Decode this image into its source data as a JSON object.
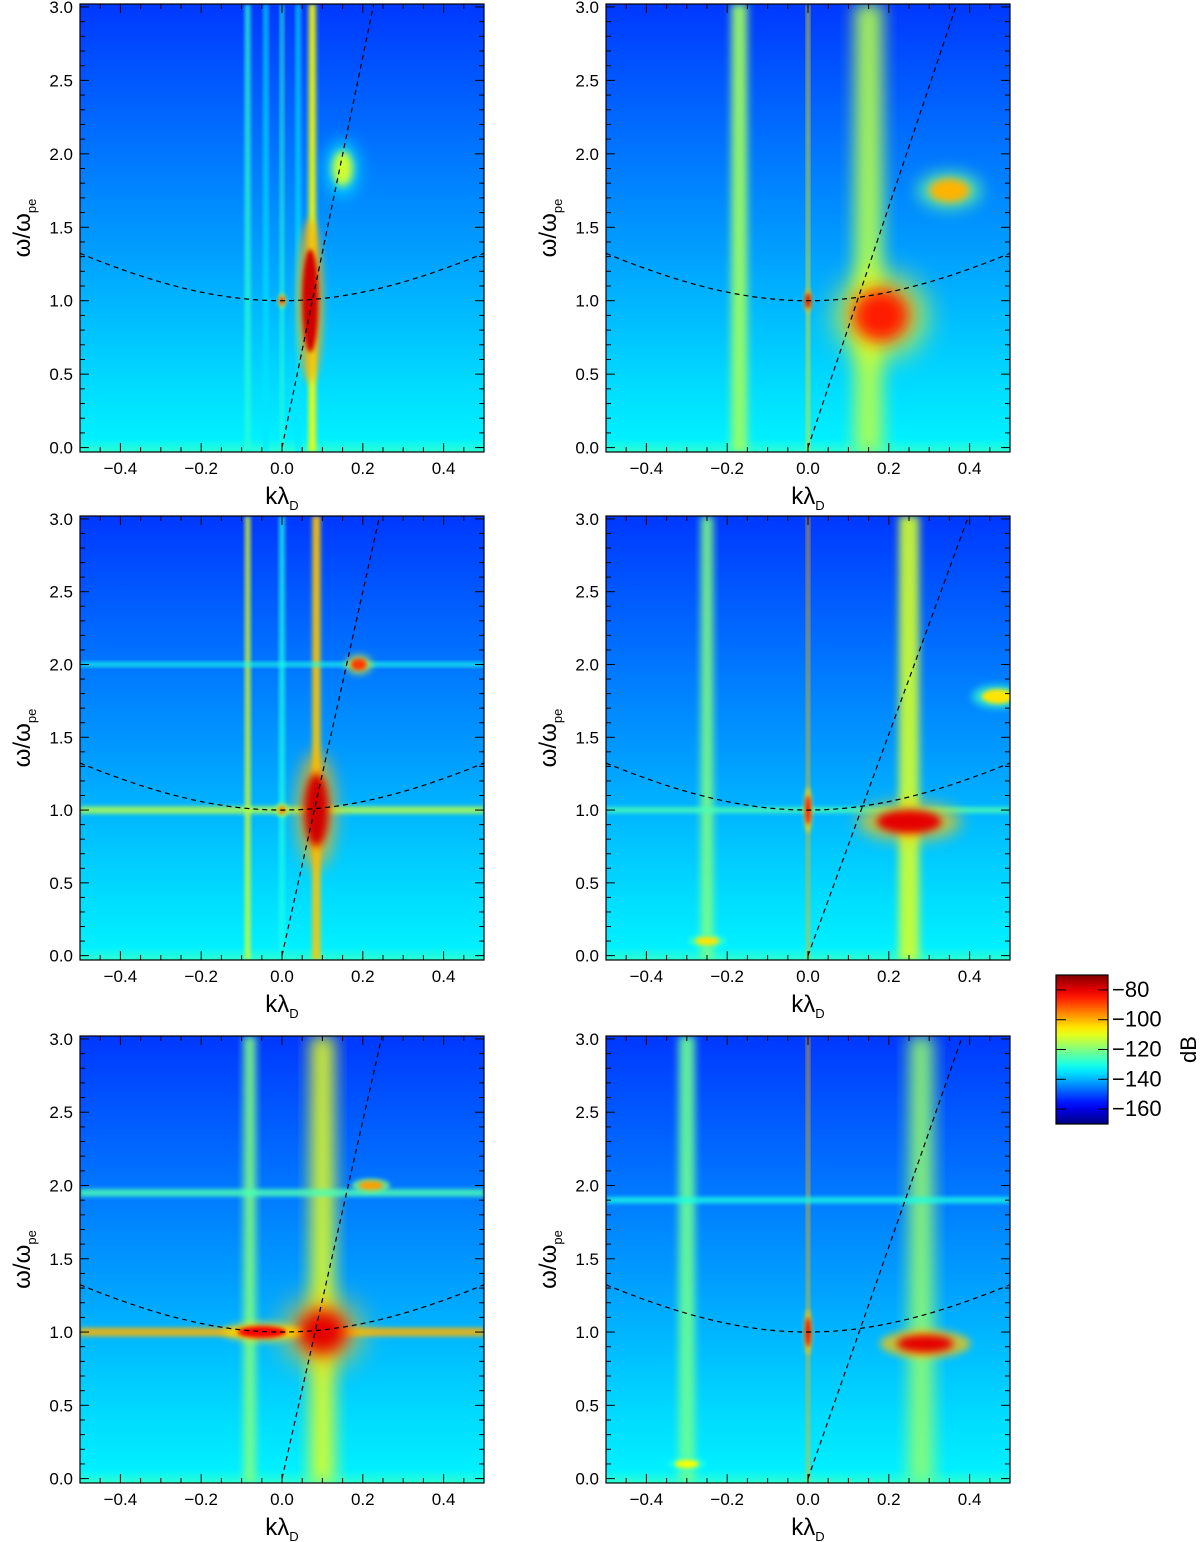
{
  "chart_data": {
    "type": "heatmap",
    "layout": "3x2 grid",
    "xlabel": "kλ",
    "xlabel_sub": "D",
    "ylabel": "ω/ω",
    "ylabel_sub": "pe",
    "xlim": [
      -0.5,
      0.5
    ],
    "ylim": [
      -0.03,
      3.02
    ],
    "xticks": [
      -0.4,
      -0.2,
      0.0,
      0.2,
      0.4
    ],
    "xtick_labels": [
      "−0.4",
      "−0.2",
      "0.0",
      "0.2",
      "0.4"
    ],
    "yticks": [
      0.0,
      0.5,
      1.0,
      1.5,
      2.0,
      2.5,
      3.0
    ],
    "ytick_labels": [
      "0.0",
      "0.5",
      "1.0",
      "1.5",
      "2.0",
      "2.5",
      "3.0"
    ],
    "overlay_curves": [
      {
        "kind": "dispersion",
        "equation": "omega = sqrt(1 + 3 k^2)",
        "style": "dashed"
      },
      {
        "kind": "beam line",
        "style": "dashed"
      }
    ],
    "colorbar": {
      "label": "dB",
      "range": [
        -170,
        -70
      ],
      "ticks": [
        -160,
        -140,
        -120,
        -100,
        -80
      ],
      "tick_labels": [
        "−160",
        "−140",
        "−120",
        "−100",
        "−80"
      ],
      "colormap": "jet"
    },
    "panels": [
      {
        "id": "row1-left",
        "beam_slope": 13.3,
        "features": [
          {
            "kind": "vband",
            "k": -0.085,
            "w": 0.012,
            "level": -128
          },
          {
            "kind": "vband",
            "k": -0.04,
            "w": 0.01,
            "level": -135
          },
          {
            "kind": "vband",
            "k": 0.0,
            "w": 0.008,
            "level": -128
          },
          {
            "kind": "vband",
            "k": 0.04,
            "w": 0.01,
            "level": -135
          },
          {
            "kind": "vband",
            "k": 0.075,
            "w": 0.018,
            "level": -108
          },
          {
            "kind": "spot",
            "k": 0.07,
            "w": 1.0,
            "dk": 0.02,
            "dw": 0.35,
            "level": -78
          },
          {
            "kind": "spot",
            "k": 0.0,
            "w": 1.0,
            "dk": 0.006,
            "dw": 0.03,
            "level": -85
          },
          {
            "kind": "spot",
            "k": 0.15,
            "w": 1.9,
            "dk": 0.025,
            "dw": 0.12,
            "level": -112
          }
        ]
      },
      {
        "id": "row1-right",
        "beam_slope": 8.2,
        "features": [
          {
            "kind": "vband",
            "k": -0.17,
            "w": 0.04,
            "level": -117
          },
          {
            "kind": "vband",
            "k": 0.0,
            "w": 0.007,
            "level": -105
          },
          {
            "kind": "vband",
            "k": 0.15,
            "w": 0.07,
            "level": -115
          },
          {
            "kind": "spot",
            "k": 0.18,
            "w": 0.9,
            "dk": 0.07,
            "dw": 0.18,
            "level": -85
          },
          {
            "kind": "spot",
            "k": 0.35,
            "w": 1.75,
            "dk": 0.05,
            "dw": 0.08,
            "level": -100
          },
          {
            "kind": "spot",
            "k": 0.0,
            "w": 1.0,
            "dk": 0.006,
            "dw": 0.05,
            "level": -78
          }
        ]
      },
      {
        "id": "row2-left",
        "beam_slope": 12.5,
        "features": [
          {
            "kind": "vband",
            "k": -0.085,
            "w": 0.012,
            "level": -110
          },
          {
            "kind": "vband",
            "k": 0.0,
            "w": 0.012,
            "level": -130
          },
          {
            "kind": "vband",
            "k": 0.085,
            "w": 0.02,
            "level": -102
          },
          {
            "kind": "hband",
            "k": 0.0,
            "w": 1.0,
            "dw": 0.05,
            "level": -115
          },
          {
            "kind": "hband",
            "k": 0.0,
            "w": 2.0,
            "dw": 0.03,
            "level": -130
          },
          {
            "kind": "spot",
            "k": 0.085,
            "w": 1.0,
            "dk": 0.03,
            "dw": 0.25,
            "level": -78
          },
          {
            "kind": "spot",
            "k": 0.19,
            "w": 2.0,
            "dk": 0.02,
            "dw": 0.04,
            "level": -88
          },
          {
            "kind": "spot",
            "k": 0.0,
            "w": 1.0,
            "dk": 0.01,
            "dw": 0.03,
            "level": -95
          }
        ]
      },
      {
        "id": "row2-right",
        "beam_slope": 7.6,
        "features": [
          {
            "kind": "vband",
            "k": -0.25,
            "w": 0.03,
            "level": -120
          },
          {
            "kind": "vband",
            "k": 0.0,
            "w": 0.007,
            "level": -100
          },
          {
            "kind": "vband",
            "k": 0.25,
            "w": 0.05,
            "level": -112
          },
          {
            "kind": "hband",
            "k": 0.0,
            "w": 1.0,
            "dw": 0.04,
            "level": -125
          },
          {
            "kind": "spot",
            "k": 0.25,
            "w": 0.92,
            "dk": 0.08,
            "dw": 0.08,
            "level": -80
          },
          {
            "kind": "spot",
            "k": 0.0,
            "w": 1.0,
            "dk": 0.006,
            "dw": 0.1,
            "level": -82
          },
          {
            "kind": "spot",
            "k": -0.25,
            "w": 0.1,
            "dk": 0.03,
            "dw": 0.03,
            "level": -105
          },
          {
            "kind": "spot",
            "k": 0.47,
            "w": 1.78,
            "dk": 0.04,
            "dw": 0.05,
            "level": -105
          }
        ]
      },
      {
        "id": "row3-left",
        "beam_slope": 12.2,
        "features": [
          {
            "kind": "vband",
            "k": -0.08,
            "w": 0.03,
            "level": -120
          },
          {
            "kind": "vband",
            "k": 0.1,
            "w": 0.06,
            "level": -110
          },
          {
            "kind": "hband",
            "k": 0.0,
            "w": 1.0,
            "dw": 0.06,
            "level": -100
          },
          {
            "kind": "hband",
            "k": 0.0,
            "w": 1.95,
            "dw": 0.05,
            "level": -125
          },
          {
            "kind": "spot",
            "k": 0.1,
            "w": 1.0,
            "dk": 0.06,
            "dw": 0.15,
            "level": -80
          },
          {
            "kind": "spot",
            "k": -0.05,
            "w": 1.0,
            "dk": 0.06,
            "dw": 0.04,
            "level": -82
          },
          {
            "kind": "spot",
            "k": 0.22,
            "w": 2.0,
            "dk": 0.03,
            "dw": 0.03,
            "level": -98
          }
        ]
      },
      {
        "id": "row3-right",
        "beam_slope": 7.9,
        "features": [
          {
            "kind": "vband",
            "k": -0.3,
            "w": 0.04,
            "level": -122
          },
          {
            "kind": "vband",
            "k": 0.0,
            "w": 0.007,
            "level": -100
          },
          {
            "kind": "vband",
            "k": 0.28,
            "w": 0.06,
            "level": -118
          },
          {
            "kind": "hband",
            "k": 0.0,
            "w": 1.9,
            "dw": 0.04,
            "level": -130
          },
          {
            "kind": "spot",
            "k": 0.29,
            "w": 0.92,
            "dk": 0.07,
            "dw": 0.06,
            "level": -80
          },
          {
            "kind": "spot",
            "k": 0.0,
            "w": 1.0,
            "dk": 0.006,
            "dw": 0.1,
            "level": -80
          },
          {
            "kind": "spot",
            "k": -0.3,
            "w": 0.1,
            "dk": 0.03,
            "dw": 0.03,
            "level": -108
          }
        ]
      }
    ]
  }
}
